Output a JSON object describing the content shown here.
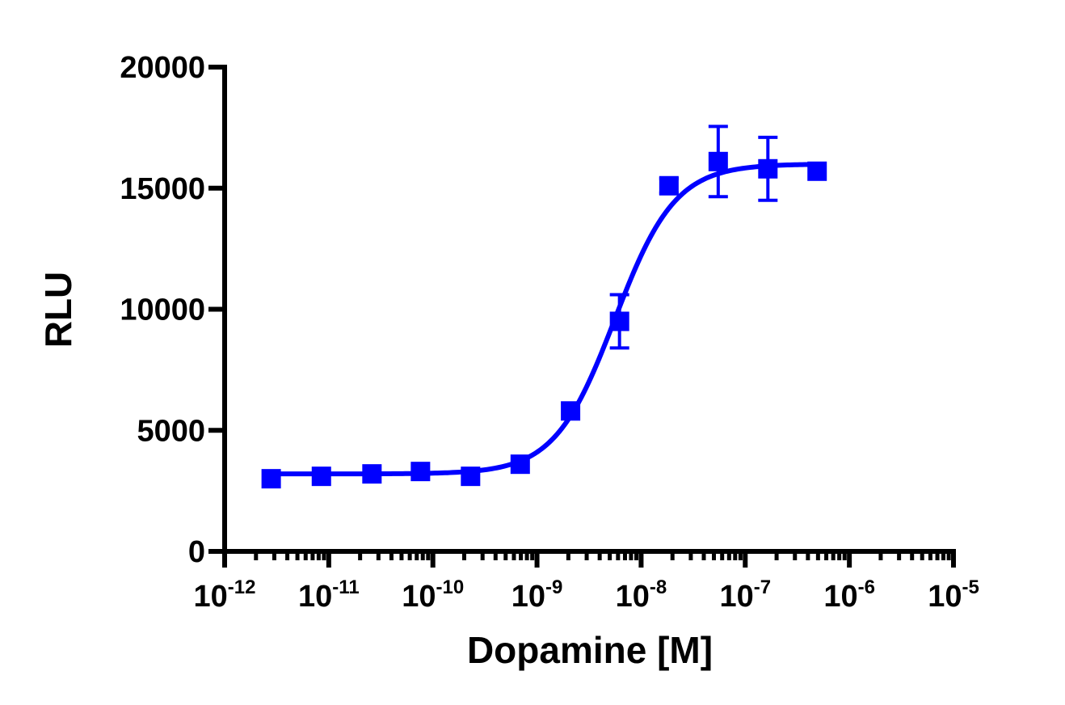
{
  "chart_data": {
    "type": "scatter",
    "title": "",
    "xlabel": "Dopamine [M]",
    "ylabel": "RLU",
    "xscale": "log",
    "xlim": [
      1e-12,
      1e-05
    ],
    "ylim": [
      0,
      20000
    ],
    "grid": false,
    "legend": "none",
    "y_ticks": [
      0,
      5000,
      10000,
      15000,
      20000
    ],
    "x_ticks": [
      {
        "base": "10",
        "exp": "-12"
      },
      {
        "base": "10",
        "exp": "-11"
      },
      {
        "base": "10",
        "exp": "-10"
      },
      {
        "base": "10",
        "exp": "-9"
      },
      {
        "base": "10",
        "exp": "-8"
      },
      {
        "base": "10",
        "exp": "-7"
      },
      {
        "base": "10",
        "exp": "-6"
      },
      {
        "base": "10",
        "exp": "-5"
      }
    ],
    "series": [
      {
        "color": "#0000ff",
        "marker": "square",
        "points": [
          {
            "x": 2.8e-12,
            "y": 3000,
            "err": 100
          },
          {
            "x": 8.5e-12,
            "y": 3100,
            "err": 100
          },
          {
            "x": 2.6e-11,
            "y": 3200,
            "err": 100
          },
          {
            "x": 7.6e-11,
            "y": 3300,
            "err": 100
          },
          {
            "x": 2.3e-10,
            "y": 3100,
            "err": 100
          },
          {
            "x": 6.9e-10,
            "y": 3600,
            "err": 100
          },
          {
            "x": 2.1e-09,
            "y": 5800,
            "err": 150
          },
          {
            "x": 6.2e-09,
            "y": 9500,
            "err": 1100
          },
          {
            "x": 1.85e-08,
            "y": 15100,
            "err": 300
          },
          {
            "x": 5.5e-08,
            "y": 16100,
            "err": 1450
          },
          {
            "x": 1.65e-07,
            "y": 15800,
            "err": 1300
          },
          {
            "x": 4.9e-07,
            "y": 15700,
            "err": 100
          }
        ],
        "fit": {
          "model": "sigmoidal dose-response",
          "bottom": 3200,
          "top": 16000,
          "ec50": 5.6e-09,
          "hill": 1.5,
          "x_range": [
            2.8e-12,
            4.9e-07
          ]
        }
      }
    ]
  }
}
